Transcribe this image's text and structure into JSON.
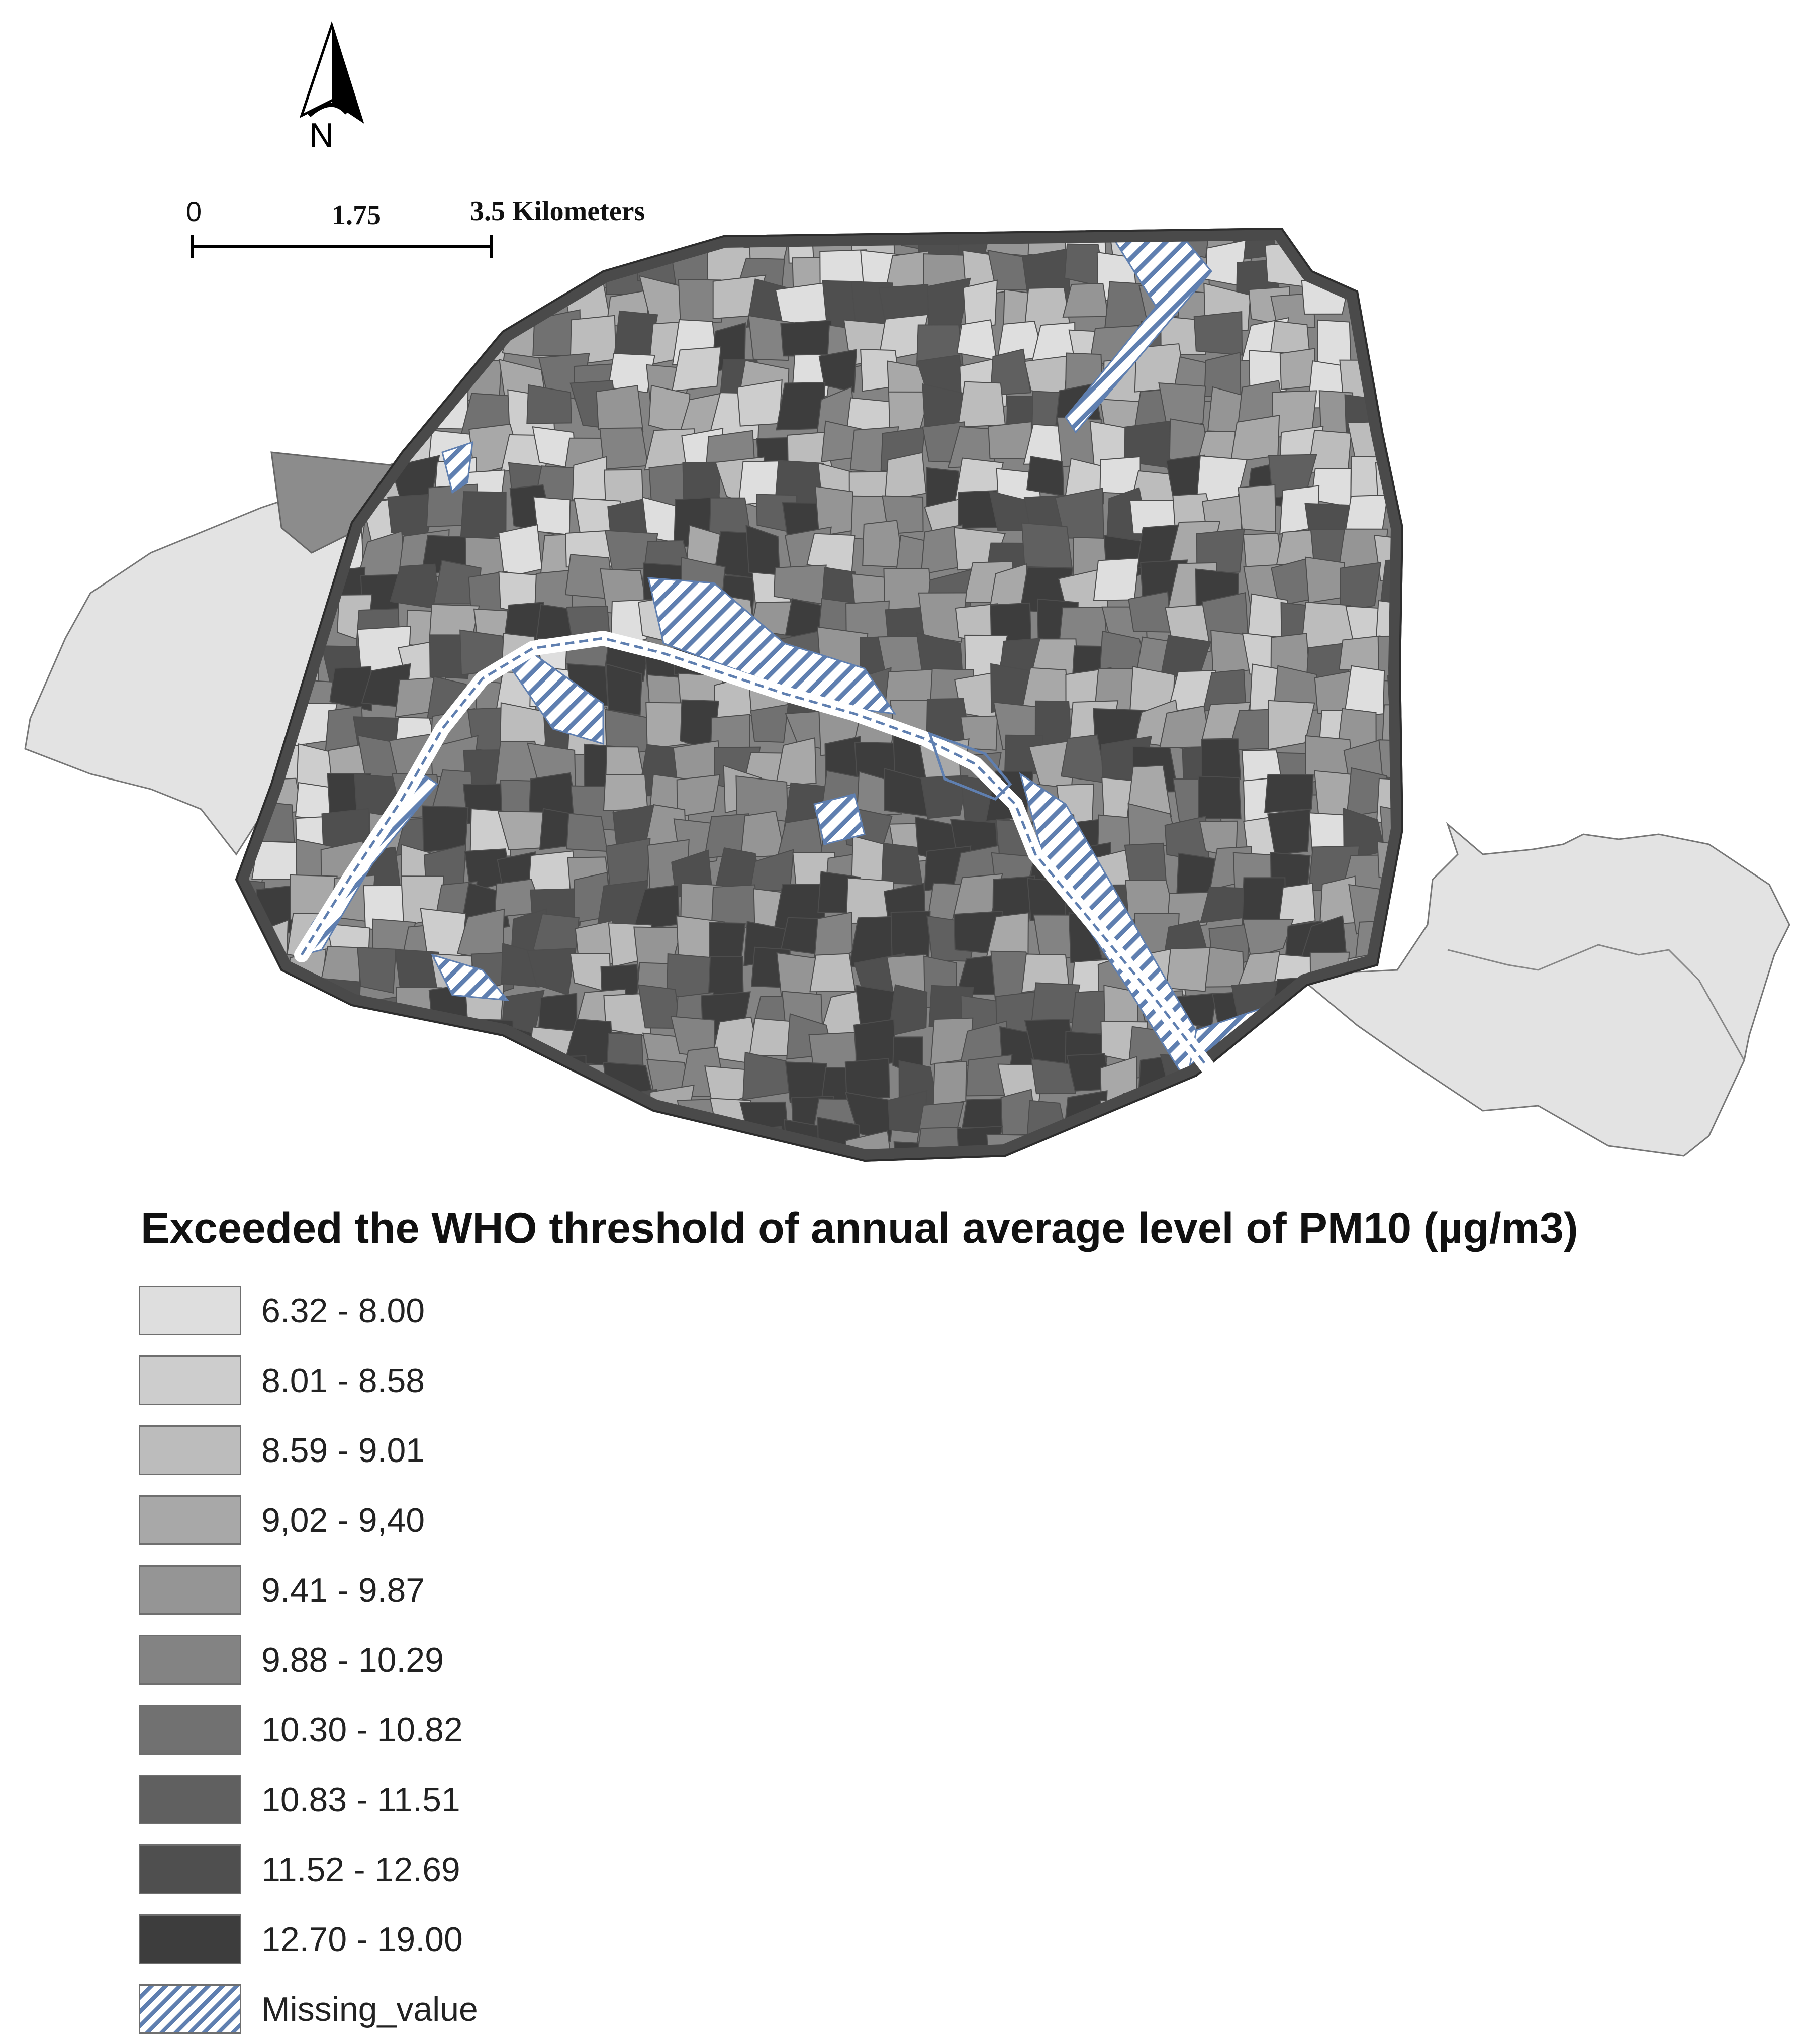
{
  "north_arrow": {
    "letter": "N"
  },
  "scale_bar": {
    "ticks": [
      "0",
      "1.75",
      "3.5 Kilometers"
    ]
  },
  "legend": {
    "title": "Exceeded the WHO threshold of annual average level of PM10 (µg/m3)",
    "classes": [
      {
        "label": "6.32 - 8.00",
        "color": "#dedede"
      },
      {
        "label": "8.01 - 8.58",
        "color": "#cdcdcd"
      },
      {
        "label": "8.59 - 9.01",
        "color": "#bcbcbc"
      },
      {
        "label": "9,02 - 9,40",
        "color": "#a8a8a8"
      },
      {
        "label": "9.41 - 9.87",
        "color": "#959595"
      },
      {
        "label": "9.88 - 10.29",
        "color": "#838383"
      },
      {
        "label": "10.30 - 10.82",
        "color": "#717171"
      },
      {
        "label": "10.83 - 11.51",
        "color": "#606060"
      },
      {
        "label": "11.52 - 12.69",
        "color": "#4f4f4f"
      },
      {
        "label": "12.70 - 19.00",
        "color": "#3d3d3d"
      },
      {
        "label": "Missing_value",
        "pattern": "diagonal-hatch",
        "color": "#5f7fb0"
      }
    ]
  },
  "map": {
    "woods_color": "#e3e3e3",
    "boundary_ring_color": "#4a4a4a",
    "river_color": "#ffffff",
    "missing_hatch_color": "#5f7fb0"
  }
}
